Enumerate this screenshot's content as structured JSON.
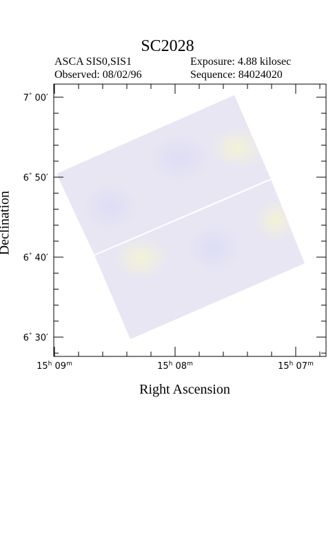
{
  "header": {
    "title": "SC2028",
    "instrument": "ASCA SIS0,SIS1",
    "observed": "Observed: 08/02/96",
    "exposure": "Exposure: 4.88 kilosec",
    "sequence": "Sequence: 84024020"
  },
  "chart_data": {
    "type": "heatmap",
    "title": "SC2028",
    "xlabel": "Right Ascension",
    "ylabel": "Declination",
    "x_ticks": [
      {
        "h": "15",
        "m": "09"
      },
      {
        "h": "15",
        "m": "08"
      },
      {
        "h": "15",
        "m": "07"
      }
    ],
    "y_ticks": [
      {
        "deg": "7",
        "min": "00"
      },
      {
        "deg": "6",
        "min": "50"
      },
      {
        "deg": "6",
        "min": "40"
      },
      {
        "deg": "6",
        "min": "30"
      }
    ],
    "colors": {
      "image_fill": "#e6e6f2",
      "frame": "#000000",
      "gap_line": "#ffffff"
    }
  }
}
